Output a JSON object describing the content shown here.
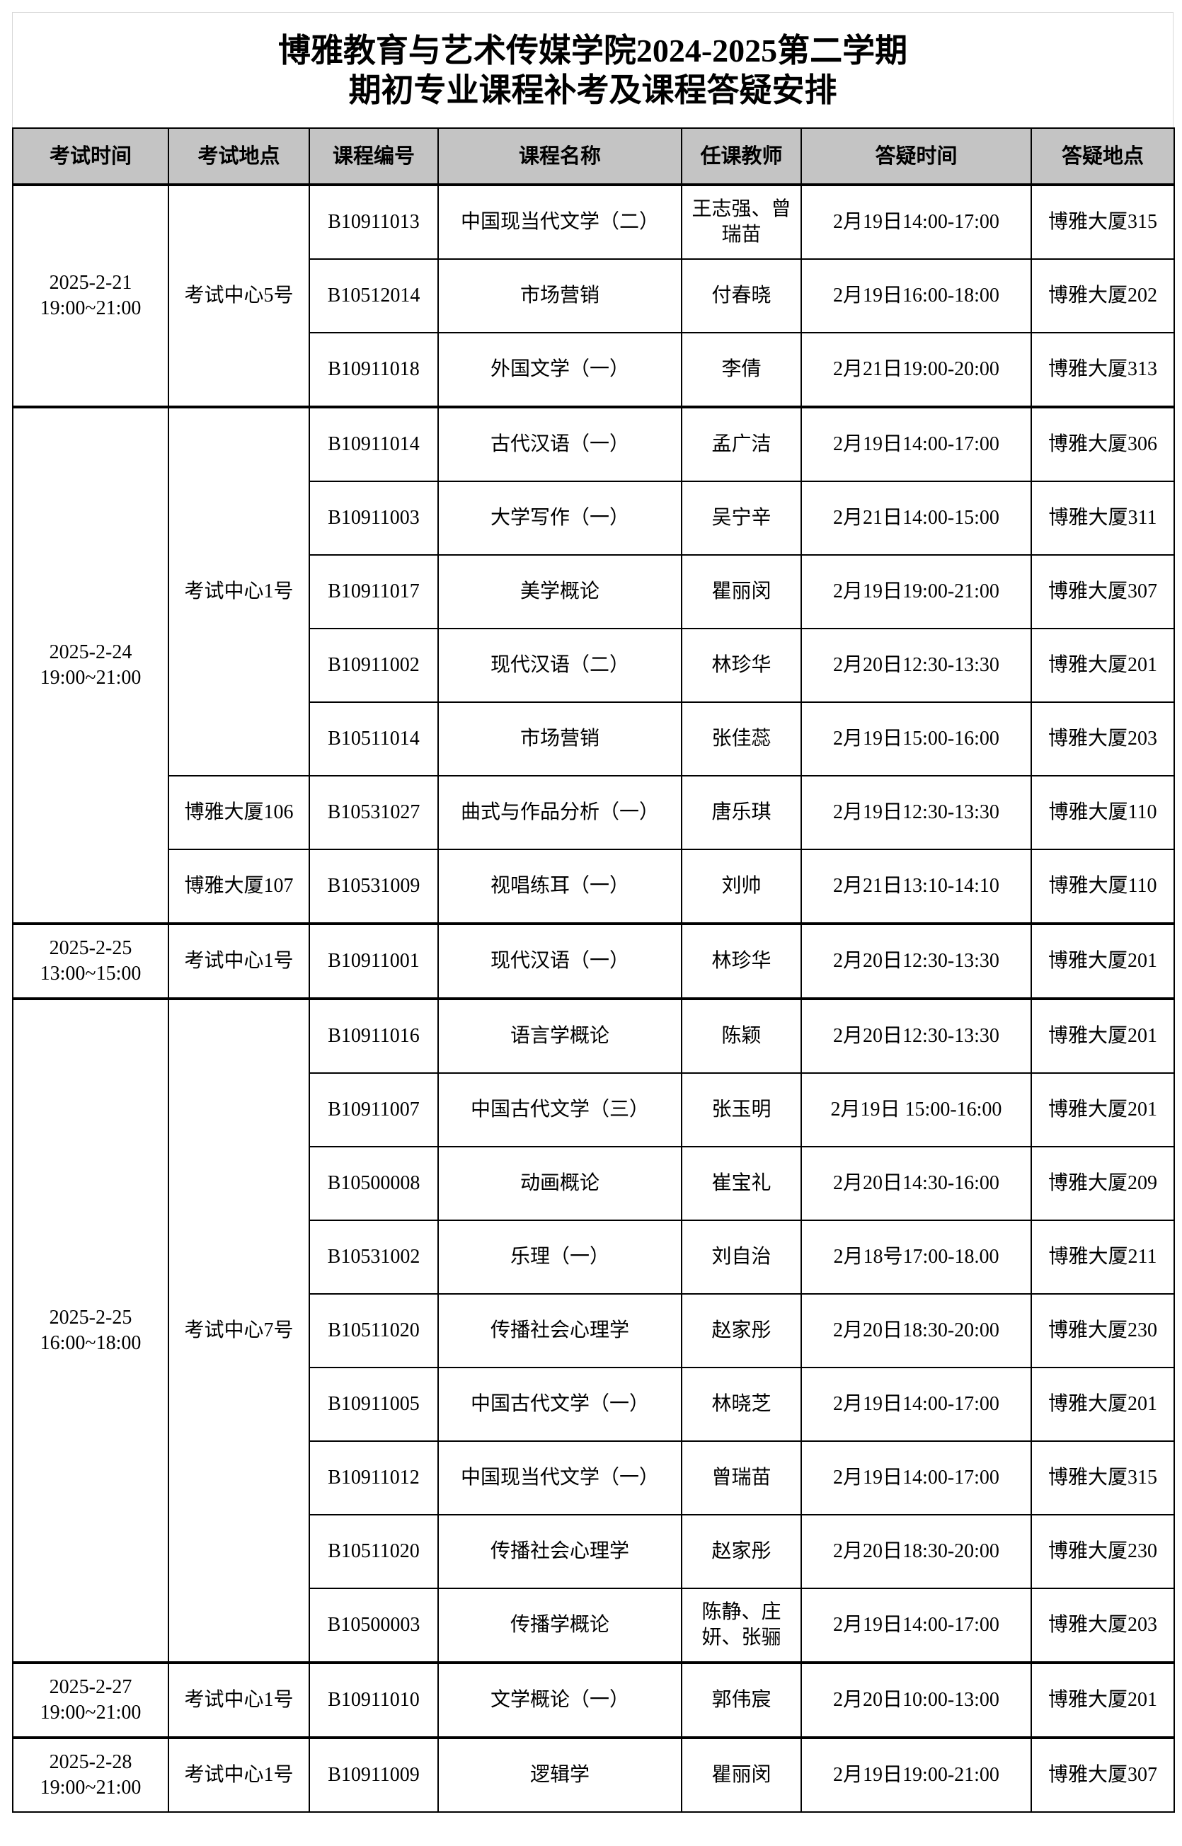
{
  "title": {
    "line1": "博雅教育与艺术传媒学院2024-2025第二学期",
    "line2": "期初专业课程补考及课程答疑安排"
  },
  "headers": [
    "考试时间",
    "考试地点",
    "课程编号",
    "课程名称",
    "任课教师",
    "答疑时间",
    "答疑地点"
  ],
  "colors": {
    "header_bg": "#c4c4c4",
    "border": "#000000"
  },
  "groups": [
    {
      "date": "2025-2-21",
      "time": "19:00~21:00",
      "locations": [
        {
          "name": "考试中心5号",
          "courses": [
            {
              "code": "B10911013",
              "name": "中国现当代文学（二）",
              "teacher": "王志强、曾瑞苗",
              "qa_time": "2月19日14:00-17:00",
              "qa_place": "博雅大厦315"
            },
            {
              "code": "B10512014",
              "name": "市场营销",
              "teacher": "付春晓",
              "qa_time": "2月19日16:00-18:00",
              "qa_place": "博雅大厦202"
            },
            {
              "code": "B10911018",
              "name": "外国文学（一）",
              "teacher": "李倩",
              "qa_time": "2月21日19:00-20:00",
              "qa_place": "博雅大厦313"
            }
          ]
        }
      ]
    },
    {
      "date": "2025-2-24",
      "time": "19:00~21:00",
      "locations": [
        {
          "name": "考试中心1号",
          "courses": [
            {
              "code": "B10911014",
              "name": "古代汉语（一）",
              "teacher": "孟广洁",
              "qa_time": "2月19日14:00-17:00",
              "qa_place": "博雅大厦306"
            },
            {
              "code": "B10911003",
              "name": "大学写作（一）",
              "teacher": "吴宁辛",
              "qa_time": "2月21日14:00-15:00",
              "qa_place": "博雅大厦311"
            },
            {
              "code": "B10911017",
              "name": "美学概论",
              "teacher": "瞿丽闵",
              "qa_time": "2月19日19:00-21:00",
              "qa_place": "博雅大厦307"
            },
            {
              "code": "B10911002",
              "name": "现代汉语（二）",
              "teacher": "林珍华",
              "qa_time": "2月20日12:30-13:30",
              "qa_place": "博雅大厦201"
            },
            {
              "code": "B10511014",
              "name": "市场营销",
              "teacher": "张佳蕊",
              "qa_time": "2月19日15:00-16:00",
              "qa_place": "博雅大厦203"
            }
          ]
        },
        {
          "name": "博雅大厦106",
          "courses": [
            {
              "code": "B10531027",
              "name": "曲式与作品分析（一）",
              "teacher": "唐乐琪",
              "qa_time": "2月19日12:30-13:30",
              "qa_place": "博雅大厦110"
            }
          ]
        },
        {
          "name": "博雅大厦107",
          "courses": [
            {
              "code": "B10531009",
              "name": "视唱练耳（一）",
              "teacher": "刘帅",
              "qa_time": "2月21日13:10-14:10",
              "qa_place": "博雅大厦110"
            }
          ]
        }
      ]
    },
    {
      "date": "2025-2-25",
      "time": "13:00~15:00",
      "locations": [
        {
          "name": "考试中心1号",
          "courses": [
            {
              "code": "B10911001",
              "name": "现代汉语（一）",
              "teacher": "林珍华",
              "qa_time": "2月20日12:30-13:30",
              "qa_place": "博雅大厦201"
            }
          ]
        }
      ]
    },
    {
      "date": "2025-2-25",
      "time": "16:00~18:00",
      "locations": [
        {
          "name": "考试中心7号",
          "courses": [
            {
              "code": "B10911016",
              "name": "语言学概论",
              "teacher": "陈颖",
              "qa_time": "2月20日12:30-13:30",
              "qa_place": "博雅大厦201"
            },
            {
              "code": "B10911007",
              "name": "中国古代文学（三）",
              "teacher": "张玉明",
              "qa_time": "2月19日 15:00-16:00",
              "qa_place": "博雅大厦201"
            },
            {
              "code": "B10500008",
              "name": "动画概论",
              "teacher": "崔宝礼",
              "qa_time": "2月20日14:30-16:00",
              "qa_place": "博雅大厦209"
            },
            {
              "code": "B10531002",
              "name": "乐理（一）",
              "teacher": "刘自治",
              "qa_time": "2月18号17:00-18.00",
              "qa_place": "博雅大厦211"
            },
            {
              "code": "B10511020",
              "name": "传播社会心理学",
              "teacher": "赵家彤",
              "qa_time": "2月20日18:30-20:00",
              "qa_place": "博雅大厦230"
            },
            {
              "code": "B10911005",
              "name": "中国古代文学（一）",
              "teacher": "林晓芝",
              "qa_time": "2月19日14:00-17:00",
              "qa_place": "博雅大厦201"
            },
            {
              "code": "B10911012",
              "name": "中国现当代文学（一）",
              "teacher": "曾瑞苗",
              "qa_time": "2月19日14:00-17:00",
              "qa_place": "博雅大厦315"
            },
            {
              "code": "B10511020",
              "name": "传播社会心理学",
              "teacher": "赵家彤",
              "qa_time": "2月20日18:30-20:00",
              "qa_place": "博雅大厦230"
            },
            {
              "code": "B10500003",
              "name": "传播学概论",
              "teacher": "陈静、庄妍、张骊",
              "qa_time": "2月19日14:00-17:00",
              "qa_place": "博雅大厦203"
            }
          ]
        }
      ]
    },
    {
      "date": "2025-2-27",
      "time": "19:00~21:00",
      "locations": [
        {
          "name": "考试中心1号",
          "courses": [
            {
              "code": "B10911010",
              "name": "文学概论（一）",
              "teacher": "郭伟宸",
              "qa_time": "2月20日10:00-13:00",
              "qa_place": "博雅大厦201"
            }
          ]
        }
      ]
    },
    {
      "date": "2025-2-28",
      "time": "19:00~21:00",
      "locations": [
        {
          "name": "考试中心1号",
          "courses": [
            {
              "code": "B10911009",
              "name": "逻辑学",
              "teacher": "瞿丽闵",
              "qa_time": "2月19日19:00-21:00",
              "qa_place": "博雅大厦307"
            }
          ]
        }
      ]
    }
  ]
}
